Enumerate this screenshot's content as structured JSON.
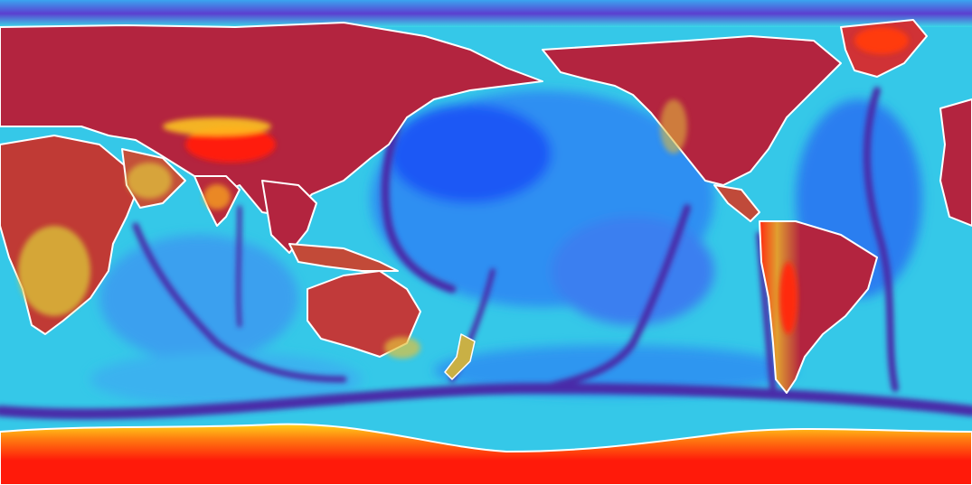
{
  "map": {
    "projection": "equirectangular",
    "center": "pacific",
    "colormap": [
      "#ff0000",
      "#b0123e",
      "#ffd21a",
      "#2ee0e6",
      "#2a55ff",
      "#5b1fb0"
    ],
    "colors": {
      "continent_red": "#b3243f",
      "hot_red": "#ff1a0a",
      "yellow": "#e6d23a",
      "cyan": "#35d0ea",
      "light_blue": "#3aa4f0",
      "blue": "#1e64f5",
      "deep_purple": "#4e2ea6",
      "coastline": "#ffffff"
    },
    "features": [
      "africa",
      "eurasia",
      "tibetan-plateau",
      "arabia",
      "india",
      "se-asia",
      "australia",
      "new-zealand",
      "north-america",
      "south-america",
      "greenland",
      "antarctica",
      "pacific-ocean",
      "atlantic-ocean",
      "indian-ocean"
    ]
  }
}
